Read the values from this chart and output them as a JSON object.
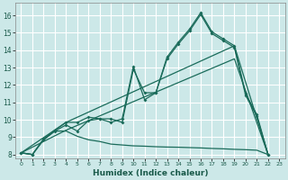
{
  "xlabel": "Humidex (Indice chaleur)",
  "bg_color": "#cce8e8",
  "grid_color": "#ffffff",
  "line_color": "#1a6b5a",
  "xlim": [
    -0.5,
    23.5
  ],
  "ylim": [
    7.8,
    16.7
  ],
  "yticks": [
    8,
    9,
    10,
    11,
    12,
    13,
    14,
    15,
    16
  ],
  "xticks": [
    0,
    1,
    2,
    3,
    4,
    5,
    6,
    7,
    8,
    9,
    10,
    11,
    12,
    13,
    14,
    15,
    16,
    17,
    18,
    19,
    20,
    21,
    22,
    23
  ],
  "series_jagged1_x": [
    0,
    1,
    2,
    3,
    4,
    5,
    6,
    7,
    8,
    9,
    10,
    11,
    12,
    13,
    14,
    15,
    16,
    17,
    18,
    19,
    20,
    21,
    22
  ],
  "series_jagged1_y": [
    8.1,
    8.0,
    8.9,
    9.4,
    9.85,
    9.85,
    10.15,
    10.05,
    9.85,
    10.05,
    13.05,
    11.15,
    11.55,
    13.6,
    14.45,
    15.2,
    16.15,
    15.05,
    14.65,
    14.25,
    11.5,
    10.3,
    8.0
  ],
  "series_jagged2_x": [
    0,
    1,
    2,
    3,
    4,
    5,
    6,
    7,
    8,
    9,
    10,
    11,
    12,
    13,
    14,
    15,
    16,
    17,
    18,
    19,
    20,
    21,
    22
  ],
  "series_jagged2_y": [
    8.1,
    8.0,
    8.85,
    9.35,
    9.7,
    9.35,
    9.95,
    10.05,
    10.05,
    9.85,
    12.9,
    11.55,
    11.55,
    13.5,
    14.35,
    15.1,
    16.05,
    14.95,
    14.55,
    14.15,
    11.4,
    10.2,
    8.0
  ],
  "series_line1_x": [
    0,
    4,
    19,
    22
  ],
  "series_line1_y": [
    8.1,
    9.85,
    14.25,
    8.0
  ],
  "series_line2_x": [
    0,
    4,
    19,
    22
  ],
  "series_line2_y": [
    8.1,
    9.4,
    13.5,
    8.0
  ],
  "series_flat_x": [
    0,
    1,
    2,
    3,
    4,
    5,
    6,
    7,
    8,
    9,
    10,
    11,
    12,
    13,
    14,
    15,
    16,
    17,
    18,
    19,
    20,
    21,
    22
  ],
  "series_flat_y": [
    8.1,
    8.0,
    8.85,
    9.35,
    9.35,
    9.05,
    8.85,
    8.75,
    8.6,
    8.55,
    8.5,
    8.48,
    8.45,
    8.43,
    8.42,
    8.4,
    8.38,
    8.35,
    8.33,
    8.3,
    8.28,
    8.25,
    8.0
  ]
}
